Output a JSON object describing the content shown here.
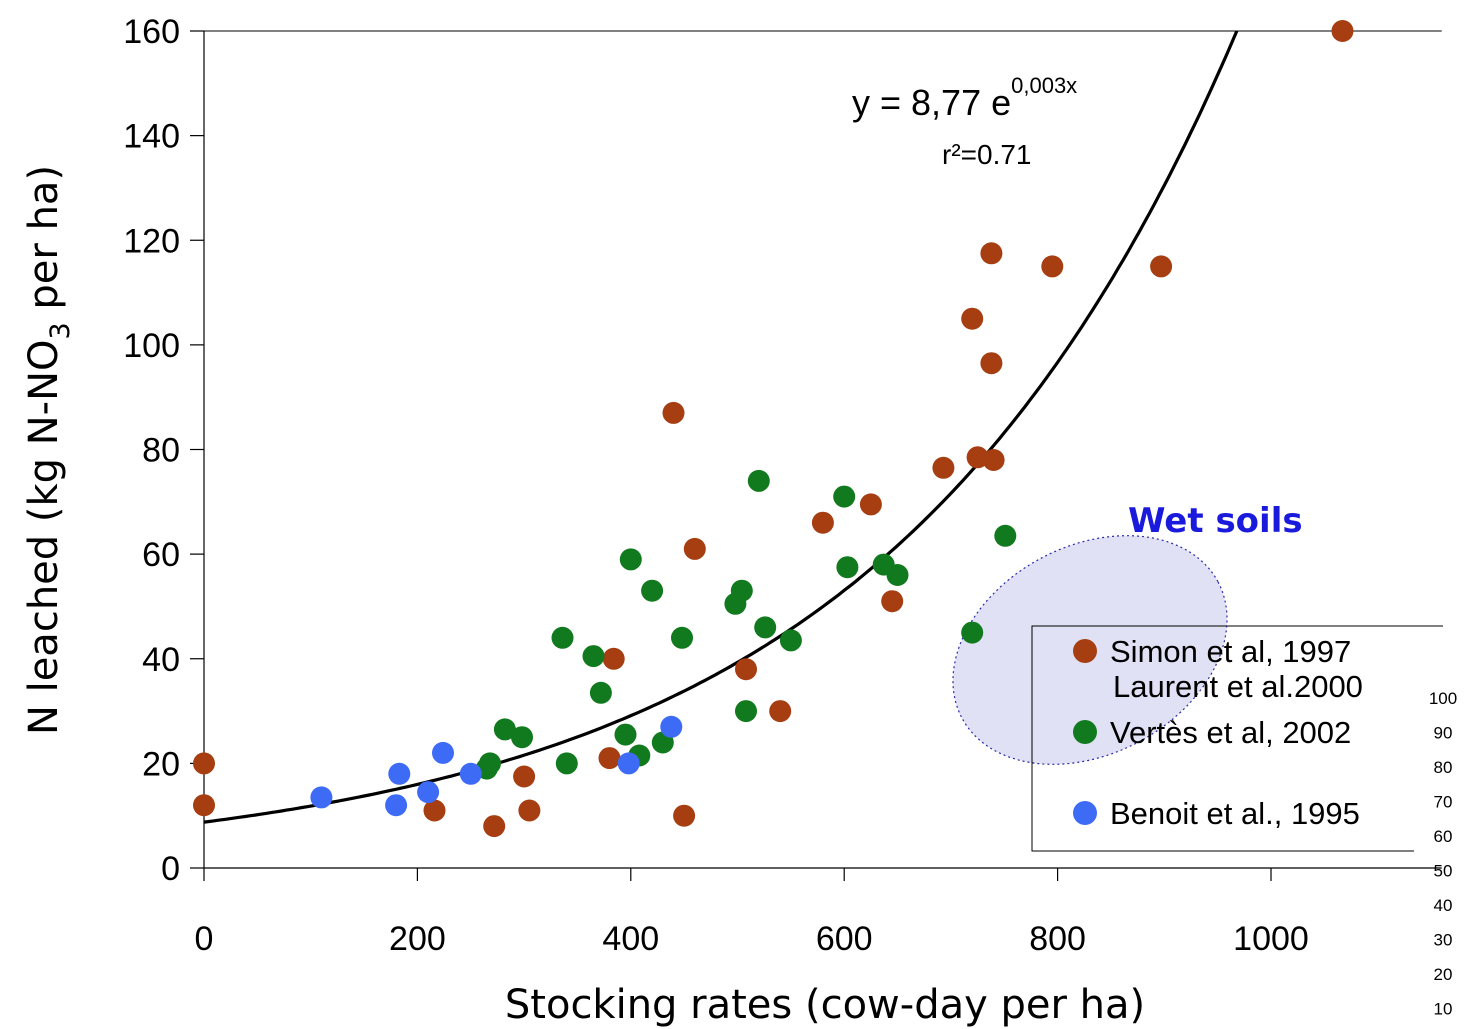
{
  "chart_data": {
    "type": "scatter",
    "xlabel": "Stocking rates (cow-day per ha)",
    "ylabel": {
      "main": "N leached (kg N-NO",
      "sub": "3",
      "tail": " per ha)"
    },
    "xlim": [
      0,
      1160
    ],
    "ylim": [
      0,
      160
    ],
    "x_ticks": [
      0,
      200,
      400,
      600,
      800,
      1000
    ],
    "y_ticks": [
      0,
      20,
      40,
      60,
      80,
      100,
      120,
      140,
      160
    ],
    "grid": false,
    "legend_position": "right",
    "fit": {
      "equation_prefix": "y = 8,77 e",
      "equation_exponent": "0,003x",
      "r2_label": "r²=0.71",
      "a": 8.77,
      "b": 0.003
    },
    "annotation": {
      "text": "Wet soils",
      "color": "#1a1adc",
      "ellipse_fill": "#dcdcf5",
      "ellipse_stroke": "#2a2aa8"
    },
    "side_scale": [
      "100",
      "90",
      "80",
      "70",
      "60",
      "50",
      "40",
      "30",
      "20",
      "10"
    ],
    "series": [
      {
        "name": "Simon et al, 1997",
        "legend_label_extra": "Laurent et al.2000",
        "color": "#a63e12",
        "points": [
          [
            0,
            20
          ],
          [
            0,
            12
          ],
          [
            216,
            11
          ],
          [
            272,
            8
          ],
          [
            300,
            17.5
          ],
          [
            305,
            11
          ],
          [
            380,
            21
          ],
          [
            384,
            40
          ],
          [
            440,
            87
          ],
          [
            450,
            10
          ],
          [
            460,
            61
          ],
          [
            508,
            38
          ],
          [
            540,
            30
          ],
          [
            580,
            66
          ],
          [
            625,
            69.5
          ],
          [
            645,
            51
          ],
          [
            693,
            76.5
          ],
          [
            720,
            105
          ],
          [
            725,
            78.5
          ],
          [
            738,
            117.5
          ],
          [
            738,
            96.5
          ],
          [
            740,
            78
          ],
          [
            795,
            115
          ],
          [
            897,
            115
          ],
          [
            1067,
            160
          ]
        ]
      },
      {
        "name": "Vertès et al, 2002",
        "color": "#127a1e",
        "points": [
          [
            265,
            19
          ],
          [
            268,
            20
          ],
          [
            282,
            26.5
          ],
          [
            298,
            25
          ],
          [
            336,
            44
          ],
          [
            340,
            20
          ],
          [
            365,
            40.5
          ],
          [
            372,
            33.5
          ],
          [
            395,
            25.5
          ],
          [
            400,
            59
          ],
          [
            408,
            21.5
          ],
          [
            420,
            53
          ],
          [
            430,
            24
          ],
          [
            448,
            44
          ],
          [
            498,
            50.5
          ],
          [
            504,
            53
          ],
          [
            508,
            30
          ],
          [
            520,
            74
          ],
          [
            526,
            46
          ],
          [
            550,
            43.5
          ],
          [
            600,
            71
          ],
          [
            603,
            57.5
          ],
          [
            637,
            58
          ],
          [
            650,
            56
          ],
          [
            720,
            45
          ],
          [
            751,
            63.5
          ]
        ]
      },
      {
        "name": "Benoit et al., 1995",
        "color": "#3d6bf5",
        "points": [
          [
            110,
            13.5
          ],
          [
            180,
            12
          ],
          [
            183,
            18
          ],
          [
            210,
            14.5
          ],
          [
            224,
            22
          ],
          [
            250,
            18
          ],
          [
            398,
            20
          ],
          [
            438,
            27
          ]
        ]
      }
    ]
  }
}
